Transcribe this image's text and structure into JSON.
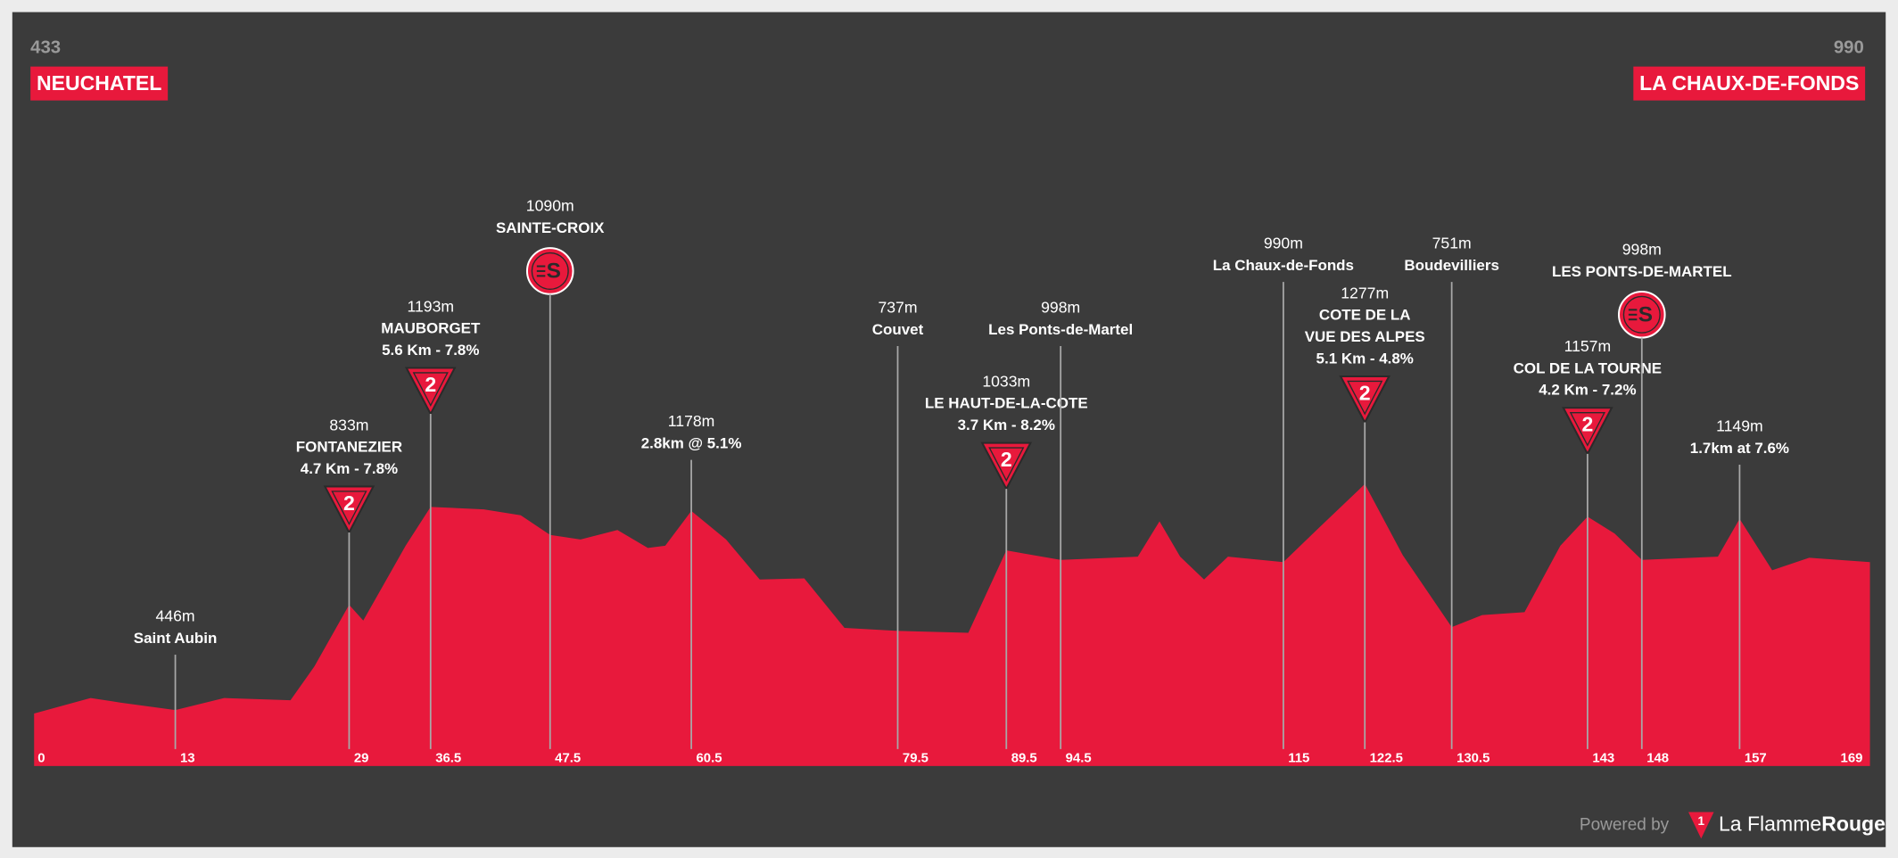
{
  "chart_data": {
    "type": "area",
    "color": "#e8193c",
    "start": {
      "elevation": "433",
      "name": "NEUCHATEL"
    },
    "finish": {
      "elevation": "990",
      "name": "LA CHAUX-DE-FONDS"
    },
    "x": [
      0,
      5.2,
      8,
      13,
      17.5,
      23.6,
      25.8,
      29,
      30.3,
      34.2,
      36.5,
      41.4,
      44.8,
      47.5,
      50.3,
      53.7,
      56.5,
      58.1,
      60.5,
      63.7,
      66.8,
      70.9,
      74.6,
      79.5,
      86,
      89.5,
      94.5,
      101.6,
      103.6,
      105.5,
      107.7,
      109.9,
      115,
      118.3,
      122.5,
      126,
      130.5,
      133.3,
      137.2,
      140.5,
      143,
      145.5,
      148,
      155,
      157,
      160,
      163.4,
      169
    ],
    "values": [
      433,
      490,
      473,
      446,
      490,
      482,
      606,
      833,
      775,
      1050,
      1193,
      1184,
      1162,
      1090,
      1073,
      1108,
      1042,
      1050,
      1178,
      1073,
      926,
      930,
      748,
      737,
      730,
      1033,
      998,
      1010,
      1140,
      1010,
      926,
      1010,
      990,
      1117,
      1277,
      1015,
      751,
      795,
      806,
      1050,
      1157,
      1095,
      998,
      1010,
      1149,
      960,
      1006,
      990
    ],
    "xlim": [
      0,
      169
    ],
    "ylim": [
      240,
      1900
    ],
    "xticks": [
      0,
      13,
      29,
      36.5,
      47.5,
      60.5,
      79.5,
      89.5,
      94.5,
      115,
      122.5,
      130.5,
      143,
      148,
      157,
      169
    ],
    "annotations": [
      {
        "km": 13,
        "elevation": "446m",
        "lines": [
          "Saint Aubin"
        ]
      },
      {
        "km": 29,
        "elevation": "833m",
        "lines": [
          "FONTANEZIER",
          "4.7 Km - 7.8%"
        ],
        "climb": "2"
      },
      {
        "km": 36.5,
        "elevation": "1193m",
        "lines": [
          "MAUBORGET",
          "5.6 Km - 7.8%"
        ],
        "climb": "2"
      },
      {
        "km": 47.5,
        "elevation": "1090m",
        "lines": [
          "SAINTE-CROIX"
        ],
        "sprint": "S"
      },
      {
        "km": 60.5,
        "elevation": "1178m",
        "lines": [
          "2.8km @ 5.1%"
        ]
      },
      {
        "km": 79.5,
        "elevation": "737m",
        "lines": [
          "Couvet"
        ]
      },
      {
        "km": 89.5,
        "elevation": "1033m",
        "lines": [
          "LE HAUT-DE-LA-COTE",
          "3.7 Km - 8.2%"
        ],
        "climb": "2"
      },
      {
        "km": 94.5,
        "elevation": "998m",
        "lines": [
          "Les Ponts-de-Martel"
        ]
      },
      {
        "km": 115,
        "elevation": "990m",
        "lines": [
          "La Chaux-de-Fonds"
        ]
      },
      {
        "km": 122.5,
        "elevation": "1277m",
        "lines": [
          "COTE DE LA",
          "VUE DES ALPES",
          "5.1 Km - 4.8%"
        ],
        "climb": "2"
      },
      {
        "km": 130.5,
        "elevation": "751m",
        "lines": [
          "Boudevilliers"
        ]
      },
      {
        "km": 143,
        "elevation": "1157m",
        "lines": [
          "COL DE LA TOURNE",
          "4.2 Km - 7.2%"
        ],
        "climb": "2"
      },
      {
        "km": 148,
        "elevation": "998m",
        "lines": [
          "LES PONTS-DE-MARTEL"
        ],
        "sprint": "S"
      },
      {
        "km": 157,
        "elevation": "1149m",
        "lines": [
          "1.7km at 7.6%"
        ]
      }
    ],
    "footer": {
      "powered_by": "Powered by",
      "logo_number": "1",
      "brand_light": "La Flamme",
      "brand_bold": "Rouge"
    }
  }
}
